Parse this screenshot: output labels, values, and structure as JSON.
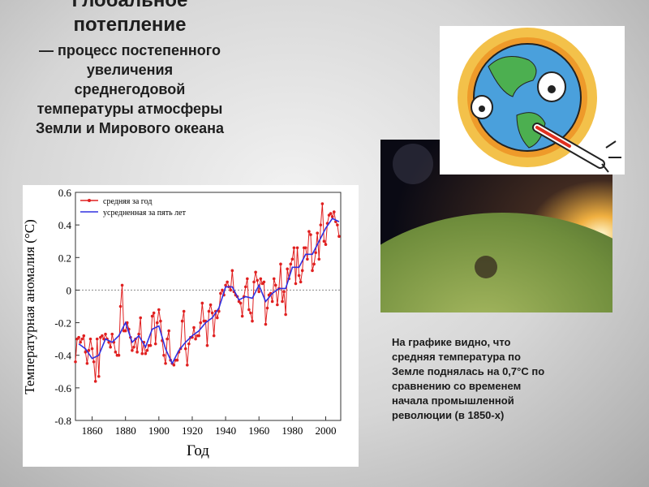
{
  "title": "Глобальное потепление",
  "text": "— процесс постепенного увеличения среднегодовой температуры атмосферы Земли и Мирового океана",
  "caption": "На графике видно, что средняя температура по Земле поднялась на 0,7°С по сравнению со временем начала промышленной революции (в 1850-х)",
  "chart_data": {
    "type": "line",
    "x_label": "Год",
    "y_label": "Температурная аномалия (°C)",
    "xlim": [
      1850,
      2009
    ],
    "xticks": [
      1860,
      1880,
      1900,
      1920,
      1940,
      1960,
      1980,
      2000
    ],
    "ylim": [
      -0.8,
      0.6
    ],
    "yticks": [
      -0.8,
      -0.6,
      -0.4,
      -0.2,
      0,
      0.2,
      0.4,
      0.6
    ],
    "zero_line": true,
    "legend": "top-left",
    "series": [
      {
        "name": "средняя за год",
        "color": "#e02020",
        "markers": true,
        "x": [
          1850,
          1851,
          1852,
          1853,
          1854,
          1855,
          1856,
          1857,
          1858,
          1859,
          1860,
          1861,
          1862,
          1863,
          1864,
          1865,
          1866,
          1867,
          1868,
          1869,
          1870,
          1871,
          1872,
          1873,
          1874,
          1875,
          1876,
          1877,
          1878,
          1879,
          1880,
          1881,
          1882,
          1883,
          1884,
          1885,
          1886,
          1887,
          1888,
          1889,
          1890,
          1891,
          1892,
          1893,
          1894,
          1895,
          1896,
          1897,
          1898,
          1899,
          1900,
          1901,
          1902,
          1903,
          1904,
          1905,
          1906,
          1907,
          1908,
          1909,
          1910,
          1911,
          1912,
          1913,
          1914,
          1915,
          1916,
          1917,
          1918,
          1919,
          1920,
          1921,
          1922,
          1923,
          1924,
          1925,
          1926,
          1927,
          1928,
          1929,
          1930,
          1931,
          1932,
          1933,
          1934,
          1935,
          1936,
          1937,
          1938,
          1939,
          1940,
          1941,
          1942,
          1943,
          1944,
          1945,
          1946,
          1947,
          1948,
          1949,
          1950,
          1951,
          1952,
          1953,
          1954,
          1955,
          1956,
          1957,
          1958,
          1959,
          1960,
          1961,
          1962,
          1963,
          1964,
          1965,
          1966,
          1967,
          1968,
          1969,
          1970,
          1971,
          1972,
          1973,
          1974,
          1975,
          1976,
          1977,
          1978,
          1979,
          1980,
          1981,
          1982,
          1983,
          1984,
          1985,
          1986,
          1987,
          1988,
          1989,
          1990,
          1991,
          1992,
          1993,
          1994,
          1995,
          1996,
          1997,
          1998,
          1999,
          2000,
          2001,
          2002,
          2003,
          2004,
          2005,
          2006,
          2007,
          2008
        ],
        "values": [
          -0.44,
          -0.3,
          -0.29,
          -0.32,
          -0.3,
          -0.28,
          -0.38,
          -0.45,
          -0.37,
          -0.3,
          -0.36,
          -0.44,
          -0.56,
          -0.3,
          -0.53,
          -0.29,
          -0.28,
          -0.3,
          -0.27,
          -0.3,
          -0.32,
          -0.35,
          -0.27,
          -0.32,
          -0.38,
          -0.4,
          -0.4,
          -0.1,
          0.03,
          -0.25,
          -0.25,
          -0.2,
          -0.24,
          -0.29,
          -0.37,
          -0.35,
          -0.3,
          -0.38,
          -0.27,
          -0.17,
          -0.39,
          -0.32,
          -0.39,
          -0.37,
          -0.34,
          -0.34,
          -0.16,
          -0.14,
          -0.33,
          -0.2,
          -0.12,
          -0.19,
          -0.31,
          -0.4,
          -0.45,
          -0.3,
          -0.25,
          -0.43,
          -0.45,
          -0.46,
          -0.43,
          -0.43,
          -0.38,
          -0.36,
          -0.19,
          -0.13,
          -0.36,
          -0.46,
          -0.33,
          -0.29,
          -0.29,
          -0.23,
          -0.3,
          -0.28,
          -0.28,
          -0.2,
          -0.08,
          -0.19,
          -0.19,
          -0.34,
          -0.13,
          -0.09,
          -0.14,
          -0.28,
          -0.13,
          -0.17,
          -0.13,
          -0.02,
          0,
          -0.03,
          0.03,
          0.05,
          0.02,
          0,
          0.12,
          -0.01,
          -0.03,
          -0.04,
          -0.07,
          -0.08,
          -0.16,
          -0.04,
          0.02,
          0.07,
          -0.12,
          -0.14,
          -0.19,
          0.05,
          0.11,
          0.06,
          -0.01,
          0.07,
          0.04,
          0.05,
          -0.21,
          -0.11,
          -0.03,
          -0.02,
          -0.07,
          0.07,
          0.03,
          -0.09,
          0.01,
          0.16,
          -0.07,
          -0.01,
          -0.15,
          0.13,
          0.07,
          0.16,
          0.19,
          0.26,
          0.04,
          0.26,
          0.09,
          0.05,
          0.12,
          0.26,
          0.26,
          0.19,
          0.36,
          0.34,
          0.12,
          0.16,
          0.23,
          0.35,
          0.19,
          0.4,
          0.53,
          0.3,
          0.28,
          0.41,
          0.46,
          0.47,
          0.45,
          0.48,
          0.42,
          0.4,
          0.33
        ]
      },
      {
        "name": "усредненная за пять лет",
        "color": "#3030e0",
        "markers": false,
        "x": [
          1852,
          1856,
          1860,
          1864,
          1868,
          1872,
          1876,
          1880,
          1884,
          1888,
          1892,
          1896,
          1900,
          1904,
          1908,
          1912,
          1916,
          1920,
          1924,
          1928,
          1932,
          1936,
          1940,
          1944,
          1948,
          1952,
          1956,
          1960,
          1964,
          1968,
          1972,
          1976,
          1980,
          1984,
          1988,
          1992,
          1996,
          2000,
          2004,
          2008
        ],
        "values": [
          -0.33,
          -0.36,
          -0.42,
          -0.4,
          -0.3,
          -0.32,
          -0.28,
          -0.2,
          -0.32,
          -0.28,
          -0.35,
          -0.24,
          -0.22,
          -0.36,
          -0.45,
          -0.37,
          -0.32,
          -0.28,
          -0.25,
          -0.2,
          -0.17,
          -0.11,
          0.02,
          0.02,
          -0.06,
          -0.04,
          -0.05,
          0.03,
          -0.07,
          -0.02,
          0.01,
          0.01,
          0.14,
          0.14,
          0.22,
          0.22,
          0.3,
          0.38,
          0.44,
          0.42
        ]
      }
    ]
  }
}
